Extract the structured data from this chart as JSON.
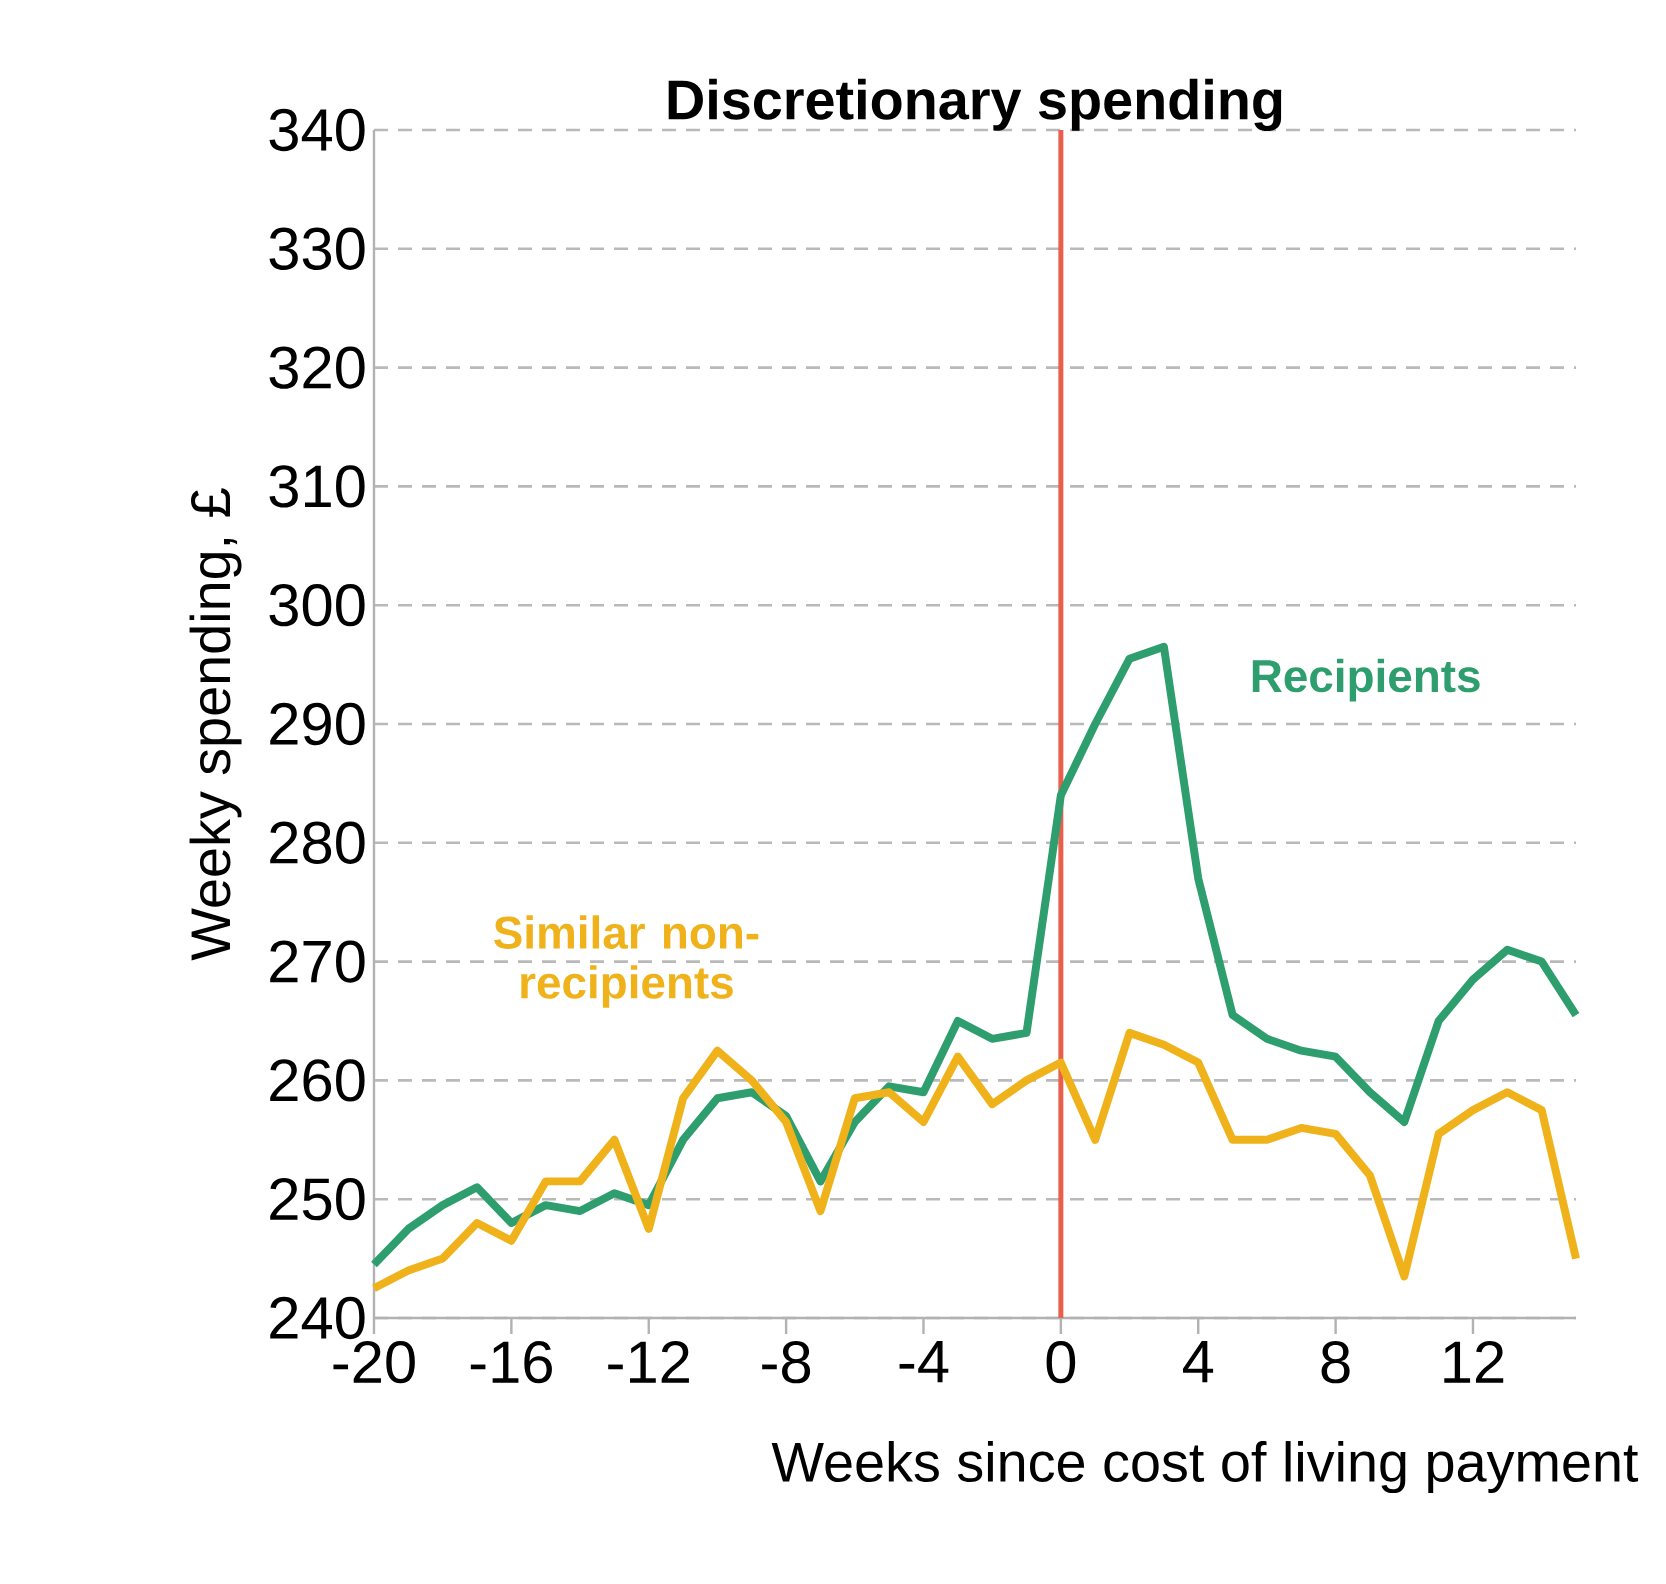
{
  "chart_data": {
    "type": "line",
    "title": "Discretionary spending",
    "xlabel": "Weeks since cost of living payment",
    "ylabel": "Weeky spending, £",
    "x": [
      -20,
      -19,
      -18,
      -17,
      -16,
      -15,
      -14,
      -13,
      -12,
      -11,
      -10,
      -9,
      -8,
      -7,
      -6,
      -5,
      -4,
      -3,
      -2,
      -1,
      0,
      1,
      2,
      3,
      4,
      5,
      6,
      7,
      8,
      9,
      10,
      11,
      12,
      13,
      14,
      15
    ],
    "series": [
      {
        "name": "Recipients",
        "color": "#2e9e6e",
        "values": [
          244.5,
          247.5,
          249.5,
          251,
          248,
          249.5,
          249,
          250.5,
          249.5,
          255,
          258.5,
          259,
          257,
          251.5,
          256.5,
          259.5,
          259,
          265,
          263.5,
          264,
          284,
          290,
          295.5,
          296.5,
          277,
          265.5,
          263.5,
          262.5,
          262,
          259,
          256.5,
          265,
          268.5,
          271,
          270,
          265.5
        ]
      },
      {
        "name": "Similar non-recipients",
        "color": "#f0b21a",
        "values": [
          242.5,
          244,
          245,
          248,
          246.5,
          251.5,
          251.5,
          255,
          247.5,
          258.5,
          262.5,
          260,
          256.5,
          249,
          258.5,
          259,
          256.5,
          262,
          258,
          260,
          261.5,
          255,
          264,
          263,
          261.5,
          255,
          255,
          256,
          255.5,
          252,
          243.5,
          255.5,
          257.5,
          259,
          257.5,
          245
        ]
      }
    ],
    "xlim": [
      -20,
      15
    ],
    "ylim": [
      240,
      340
    ],
    "xticks": [
      -20,
      -16,
      -12,
      -8,
      -4,
      0,
      4,
      8,
      12
    ],
    "yticks": [
      240,
      250,
      260,
      270,
      280,
      290,
      300,
      310,
      320,
      330,
      340
    ],
    "grid": "y",
    "marker": "none",
    "line_style": "solid",
    "ref_lines": [
      {
        "axis": "x",
        "value": 0,
        "color": "#e8604c"
      }
    ]
  }
}
